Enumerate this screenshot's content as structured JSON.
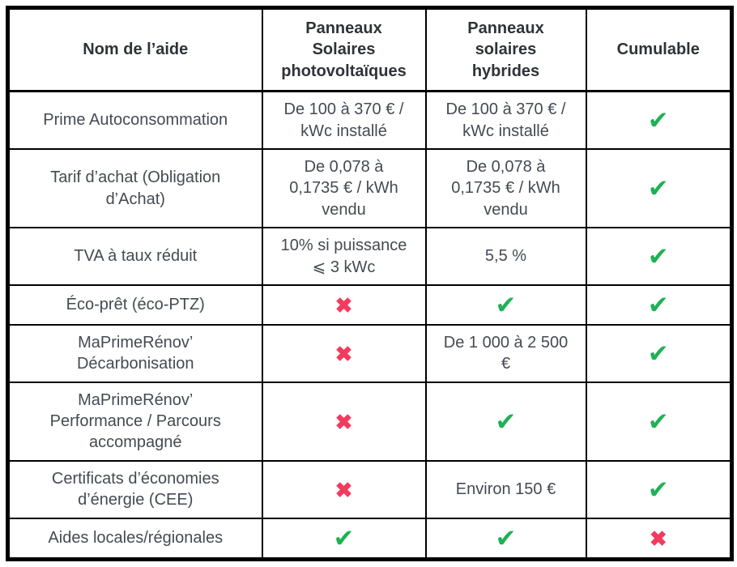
{
  "table": {
    "columns": [
      {
        "label": "Nom de l’aide"
      },
      {
        "label": "Panneaux\nSolaires\nphotovoltaïques"
      },
      {
        "label": "Panneaux\nsolaires\nhybrides"
      },
      {
        "label": "Cumulable"
      }
    ],
    "rows": [
      {
        "aid": "Prime Autoconsommation",
        "pv": {
          "type": "text",
          "value": "De 100 à 370 € /\nkWc installé"
        },
        "hybrid": {
          "type": "text",
          "value": "De 100 à 370 € /\nkWc installé"
        },
        "cumulable": {
          "type": "check"
        }
      },
      {
        "aid": "Tarif d’achat (Obligation\nd’Achat)",
        "pv": {
          "type": "text",
          "value": "De 0,078 à\n0,1735 € / kWh\nvendu"
        },
        "hybrid": {
          "type": "text",
          "value": "De 0,078 à\n0,1735 € / kWh\nvendu"
        },
        "cumulable": {
          "type": "check"
        }
      },
      {
        "aid": "TVA à taux réduit",
        "pv": {
          "type": "text",
          "value": "10% si puissance\n⩽ 3 kWc"
        },
        "hybrid": {
          "type": "text",
          "value": "5,5 %"
        },
        "cumulable": {
          "type": "check"
        }
      },
      {
        "aid": "Éco-prêt (éco-PTZ)",
        "pv": {
          "type": "cross"
        },
        "hybrid": {
          "type": "check"
        },
        "cumulable": {
          "type": "check"
        }
      },
      {
        "aid": "MaPrimeRénov’\nDécarbonisation",
        "pv": {
          "type": "cross"
        },
        "hybrid": {
          "type": "text",
          "value": "De 1 000 à 2 500\n€"
        },
        "cumulable": {
          "type": "check"
        }
      },
      {
        "aid": "MaPrimeRénov’\nPerformance / Parcours\naccompagné",
        "pv": {
          "type": "cross"
        },
        "hybrid": {
          "type": "check"
        },
        "cumulable": {
          "type": "check"
        }
      },
      {
        "aid": "Certificats d’économies\nd’énergie (CEE)",
        "pv": {
          "type": "cross"
        },
        "hybrid": {
          "type": "text",
          "value": "Environ 150 €"
        },
        "cumulable": {
          "type": "check"
        }
      },
      {
        "aid": "Aides locales/régionales",
        "pv": {
          "type": "check"
        },
        "hybrid": {
          "type": "check"
        },
        "cumulable": {
          "type": "cross"
        }
      }
    ]
  },
  "icons": {
    "check_glyph": "✔",
    "cross_glyph": "✖"
  },
  "colors": {
    "check_green": "#1fb155",
    "cross_red": "#f23b5e",
    "header_text": "#2f3338",
    "body_text": "#454a52",
    "border": "#000000",
    "background": "#ffffff"
  }
}
